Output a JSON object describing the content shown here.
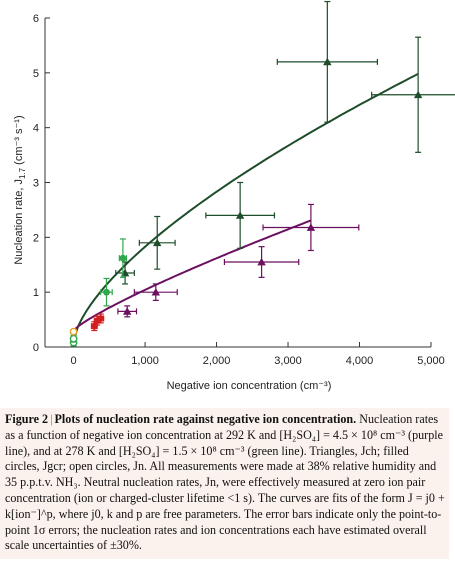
{
  "chart_data": {
    "type": "scatter",
    "xlabel": "Negative ion concentration (cm⁻³)",
    "ylabel": "Nucleation rate, J",
    "ylabel_sub": "1.7",
    "ylabel_unit": " (cm⁻³ s⁻¹)",
    "xlim": [
      -400,
      5000
    ],
    "ylim": [
      0,
      6
    ],
    "x_ticks": [
      0,
      1000,
      2000,
      3000,
      4000,
      5000
    ],
    "x_tick_labels": [
      "0",
      "1,000",
      "2,000",
      "3,000",
      "4,000",
      "5,000"
    ],
    "y_ticks": [
      0,
      1,
      2,
      3,
      4,
      5,
      6
    ],
    "y_tick_labels": [
      "0",
      "1",
      "2",
      "3",
      "4",
      "5",
      "6"
    ],
    "grid": false,
    "series": [
      {
        "color": "#1e4d2b",
        "marker": "triangle",
        "points": [
          {
            "x": 720,
            "y": 1.35,
            "xerr": 130,
            "yerr": 0.2
          },
          {
            "x": 1170,
            "y": 1.9,
            "xerr": 250,
            "yerr": 0.48
          },
          {
            "x": 2330,
            "y": 2.4,
            "xerr": 480,
            "yerr": 0.6
          },
          {
            "x": 3550,
            "y": 5.2,
            "xerr": 700,
            "yerr": 1.1
          },
          {
            "x": 4820,
            "y": 4.6,
            "xerr": 650,
            "yerr": 1.05
          }
        ]
      },
      {
        "color": "#6b1060",
        "marker": "triangle",
        "points": [
          {
            "x": 750,
            "y": 0.65,
            "xerr": 130,
            "yerr": 0.1
          },
          {
            "x": 1150,
            "y": 1.0,
            "xerr": 300,
            "yerr": 0.15
          },
          {
            "x": 2630,
            "y": 1.55,
            "xerr": 520,
            "yerr": 0.28
          },
          {
            "x": 3320,
            "y": 2.18,
            "xerr": 670,
            "yerr": 0.42
          }
        ]
      },
      {
        "color": "#2ea84a",
        "marker": "circle",
        "points": [
          {
            "x": 460,
            "y": 1.0,
            "xerr": 80,
            "yerr": 0.25
          },
          {
            "x": 690,
            "y": 1.62,
            "xerr": 50,
            "yerr": 0.35
          }
        ]
      },
      {
        "color": "#d21e1e",
        "marker": "circle",
        "points": [
          {
            "x": 290,
            "y": 0.38,
            "xerr": 40,
            "yerr": 0.08
          },
          {
            "x": 330,
            "y": 0.48,
            "xerr": 40,
            "yerr": 0.08
          },
          {
            "x": 380,
            "y": 0.52,
            "xerr": 40,
            "yerr": 0.08
          }
        ]
      },
      {
        "color": "#2ea84a",
        "marker": "open-circle",
        "points": [
          {
            "x": 0,
            "y": 0.08,
            "xerr": 0,
            "yerr": 0.06
          },
          {
            "x": 0,
            "y": 0.15,
            "xerr": 0,
            "yerr": 0.06
          }
        ]
      },
      {
        "color": "#e0a020",
        "marker": "open-circle",
        "points": [
          {
            "x": 0,
            "y": 0.28,
            "xerr": 0,
            "yerr": 0.04
          }
        ]
      }
    ],
    "fits": [
      {
        "color": "#1e4d2b",
        "j0": 0.1,
        "k": 0.0181,
        "p": 0.66,
        "x_end": 4820
      },
      {
        "color": "#6b1060",
        "j0": 0.3,
        "k": 0.0024,
        "p": 0.83,
        "x_end": 3320
      }
    ]
  },
  "caption": {
    "figure_number": "Figure 2",
    "separator": "|",
    "title": "Plots of nucleation rate against negative ion concentration.",
    "body": "Nucleation rates as a function of negative ion concentration at 292 K and [H₂SO₄] = 4.5 × 10⁸ cm⁻³ (purple line), and at 278 K and [H₂SO₄] = 1.5 × 10⁸ cm⁻³ (green line). Triangles, Jch; filled circles, Jgcr; open circles, Jn. All measurements were made at 38% relative humidity and 35 p.p.t.v. NH₃. Neutral nucleation rates, Jn, were effectively measured at zero ion pair concentration (ion or charged-cluster lifetime <1 s). The curves are fits of the form J = j0 + k[ion⁻]^p, where j0, k and p are free parameters. The error bars indicate only the point-to-point 1σ errors; the nucleation rates and ion concentrations each have estimated overall scale uncertainties of ±30%."
  }
}
